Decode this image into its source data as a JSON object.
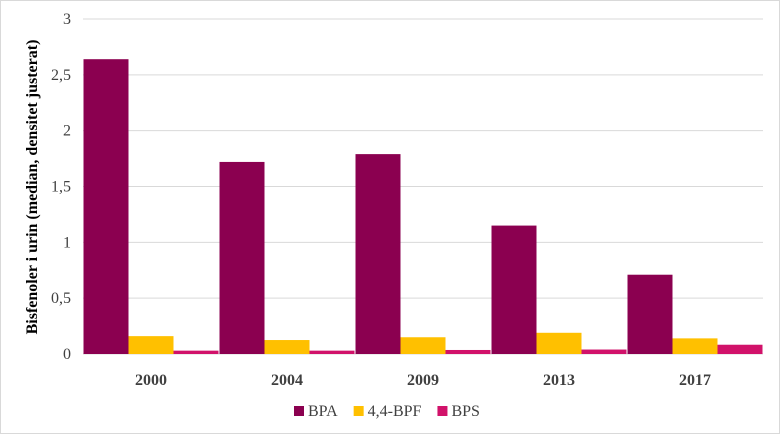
{
  "chart_data": {
    "type": "bar",
    "title": "",
    "xlabel": "",
    "ylabel": "Bisfenoler i urin (median, densitet justerat)",
    "ylim": [
      0,
      3
    ],
    "yticks": [
      "0",
      "0,5",
      "1",
      "1,5",
      "2",
      "2,5",
      "3"
    ],
    "ytick_values": [
      0,
      0.5,
      1,
      1.5,
      2,
      2.5,
      3
    ],
    "grid": true,
    "legend_position": "bottom",
    "categories": [
      "2000",
      "2004",
      "2009",
      "2013",
      "2017"
    ],
    "series": [
      {
        "name": "BPA",
        "color": "#8B0050",
        "values": [
          2.64,
          1.72,
          1.79,
          1.15,
          0.71
        ]
      },
      {
        "name": "4,4-BPF",
        "color": "#FFC000",
        "values": [
          0.16,
          0.125,
          0.15,
          0.19,
          0.14
        ]
      },
      {
        "name": "BPS",
        "color": "#D1126A",
        "values": [
          0.03,
          0.03,
          0.036,
          0.04,
          0.083
        ]
      }
    ]
  }
}
